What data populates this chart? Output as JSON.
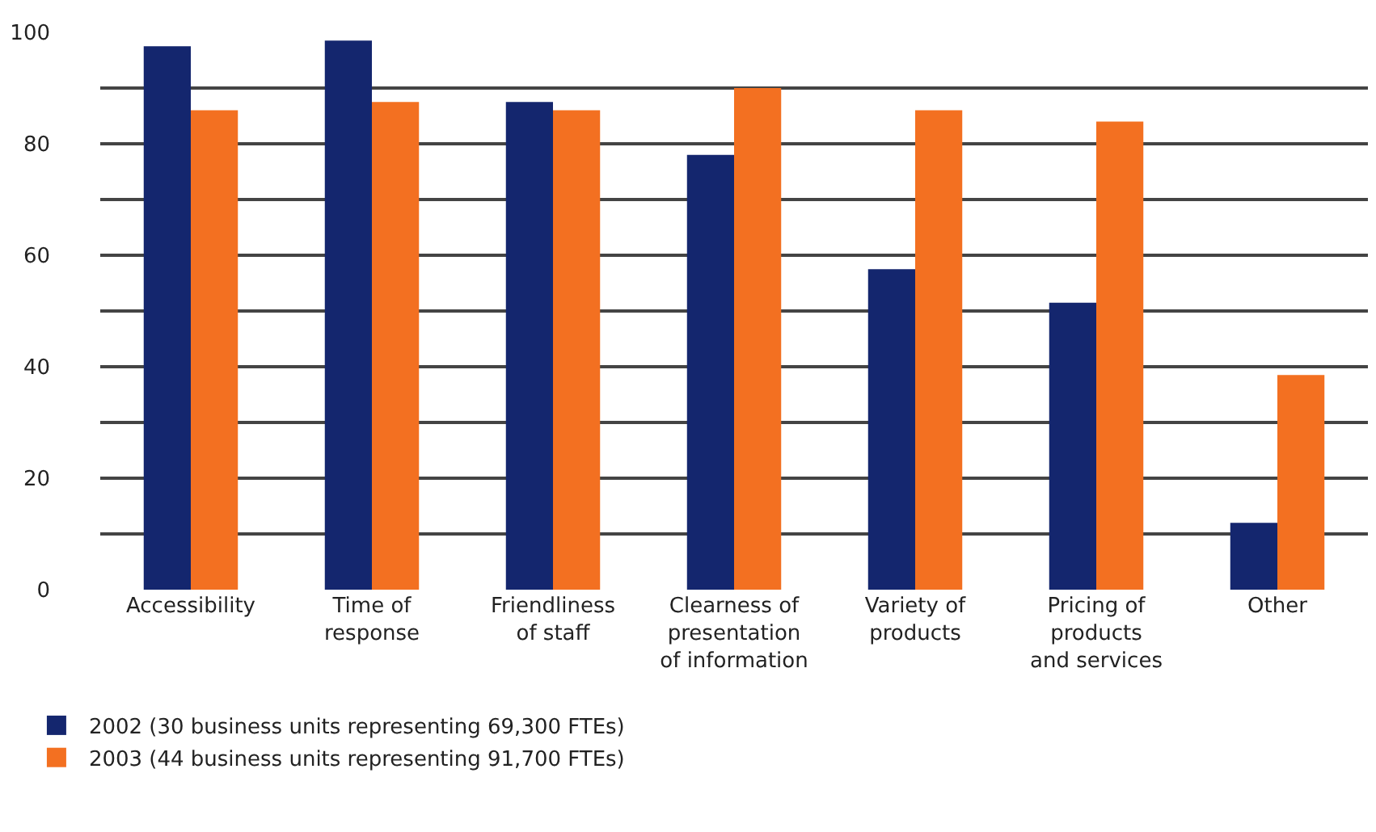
{
  "chart_data": {
    "type": "bar",
    "categories": [
      "Accessibility",
      "Time of\nresponse",
      "Friendliness\nof staff",
      "Clearness of\npresentation\nof information",
      "Variety of\nproducts",
      "Pricing of\nproducts\nand services",
      "Other"
    ],
    "series": [
      {
        "name": "2002 (30 business units representing 69,300 FTEs)",
        "color": "#14266e",
        "values": [
          97.5,
          98.5,
          87.5,
          78,
          57.5,
          51.5,
          12
        ]
      },
      {
        "name": "2003 (44 business units representing 91,700 FTEs)",
        "color": "#f37021",
        "values": [
          86,
          87.5,
          86,
          90,
          86,
          84,
          38.5
        ]
      }
    ],
    "ylim": [
      0,
      100
    ],
    "yticks": [
      0,
      {
        "value": 10,
        "label": null
      },
      20,
      {
        "value": 30,
        "label": null
      },
      40,
      {
        "value": 50,
        "label": null
      },
      60,
      {
        "value": 70,
        "label": null
      },
      80,
      {
        "value": 90,
        "label": null
      },
      100
    ],
    "grid": "y",
    "legend": "bottom"
  }
}
